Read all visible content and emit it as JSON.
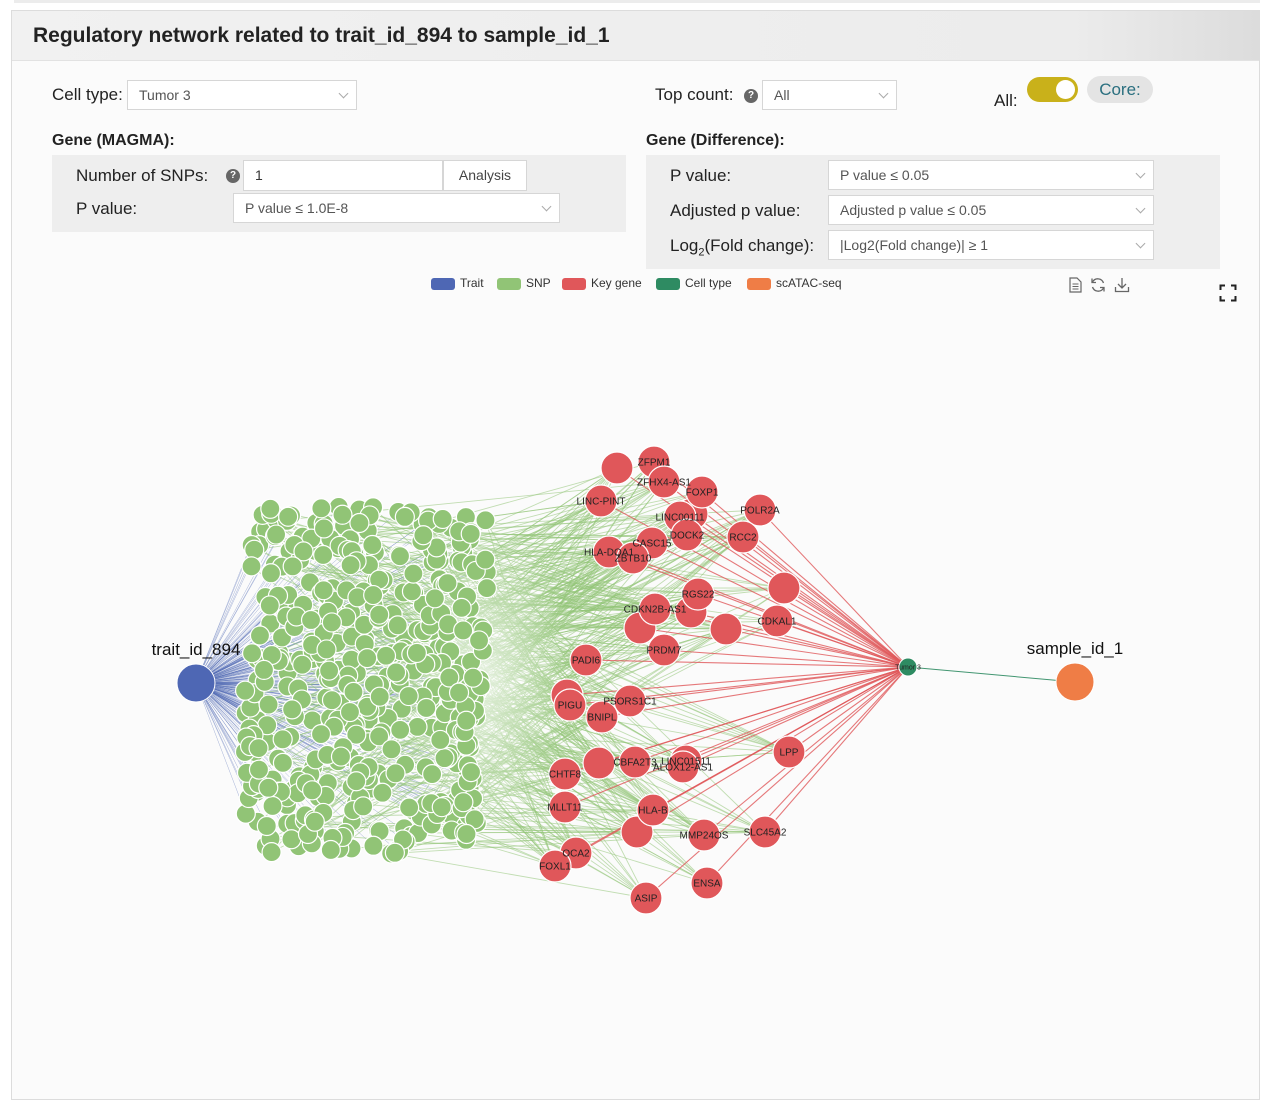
{
  "panel": {
    "title": "Regulatory network related to trait_id_894 to sample_id_1"
  },
  "controls": {
    "cell_type_label": "Cell type:",
    "cell_type_value": "Tumor 3",
    "top_count_label": "Top count:",
    "top_count_value": "All",
    "all_label": "All:",
    "core_label": "Core:"
  },
  "magma": {
    "heading": "Gene (MAGMA):",
    "snps_label": "Number of SNPs:",
    "snps_value": "1",
    "analysis_label": "Analysis",
    "pvalue_label": "P value:",
    "pvalue_value": "P value ≤ 1.0E-8"
  },
  "difference": {
    "heading": "Gene (Difference):",
    "pvalue_label": "P value:",
    "pvalue_value": "P value ≤ 0.05",
    "adj_label": "Adjusted p value:",
    "adj_value": "Adjusted p value ≤ 0.05",
    "log_label_main": "Log",
    "log_label_sub": "2",
    "log_label_tail": "(Fold change):",
    "log_value": "|Log2(Fold change)| ≥ 1"
  },
  "legend": [
    {
      "label": "Trait",
      "color": "#4e67b4"
    },
    {
      "label": "SNP",
      "color": "#91c476"
    },
    {
      "label": "Key gene",
      "color": "#e0575a"
    },
    {
      "label": "Cell type",
      "color": "#2e8b62"
    },
    {
      "label": "scATAC-seq",
      "color": "#ef7d46"
    }
  ],
  "toolbar": {
    "data_view_icon": "document-icon",
    "restore_icon": "refresh-icon",
    "save_icon": "download-icon",
    "fullscreen_icon": "fullscreen-icon"
  },
  "graph": {
    "trait": "trait_id_894",
    "cell_type": "Tumor 3",
    "sample": "sample_id_1",
    "genes": [
      "ZFPM1",
      "ZFHX4-AS1",
      "FOXP1",
      "LINC-PINT",
      "POLR2A",
      "LINC00111",
      "DOCK2",
      "RCC2",
      "HLA-DQA1",
      "CASC15",
      "ZBTB10",
      "RGS22",
      "CDKN2B-AS1",
      "CDKAL1",
      "PRDM7",
      "PADI6",
      "PSORS1C1",
      "PIGU",
      "BNIPL",
      "LPP",
      "LINC01511",
      "CBFA2T3",
      "ALOX12-AS1",
      "CHTF8",
      "MLLT11",
      "HLA-B",
      "MMP24OS",
      "SLC45A2",
      "OCA2",
      "FOXL1",
      "ENSA",
      "ASIP"
    ],
    "colors": {
      "trait": "#4e67b4",
      "snp": "#91c476",
      "gene": "#e0575a",
      "cell": "#2e8b62",
      "sample": "#ef7d46"
    }
  }
}
